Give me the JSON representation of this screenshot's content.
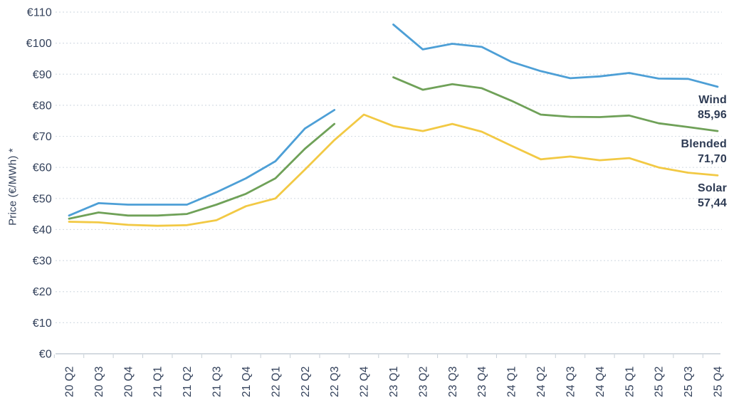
{
  "chart_data": {
    "type": "line",
    "title": "",
    "xlabel": "",
    "ylabel": "Price (€/MWh) *",
    "ylim": [
      0,
      110
    ],
    "ytick_step": 10,
    "ytick_labels": [
      "€0",
      "€10",
      "€20",
      "€30",
      "€40",
      "€50",
      "€60",
      "€70",
      "€80",
      "€90",
      "€100",
      "€110"
    ],
    "grid": "horizontal dotted gridlines, light gray",
    "legend_position": "line-end labels at right edge",
    "categories": [
      "20 Q2",
      "20 Q3",
      "20 Q4",
      "21 Q1",
      "21 Q2",
      "21 Q3",
      "21 Q4",
      "22 Q1",
      "22 Q2",
      "22 Q3",
      "22 Q4",
      "23 Q1",
      "23 Q2",
      "23 Q3",
      "23 Q4",
      "24 Q1",
      "24 Q2",
      "24 Q3",
      "24 Q4",
      "25 Q1",
      "25 Q2",
      "25 Q3",
      "25 Q4"
    ],
    "series": [
      {
        "name": "Wind",
        "end_label": "85,96",
        "color": "#4d9fd6",
        "values": [
          44.5,
          48.5,
          48.0,
          48.0,
          48.0,
          52.0,
          56.5,
          62.0,
          72.5,
          78.5,
          null,
          106.0,
          98.0,
          99.8,
          98.8,
          94.0,
          91.0,
          88.7,
          89.3,
          90.4,
          88.6,
          88.5,
          85.96
        ]
      },
      {
        "name": "Blended",
        "end_label": "71,70",
        "color": "#6fa158",
        "values": [
          43.5,
          45.5,
          44.5,
          44.5,
          45.0,
          48.0,
          51.5,
          56.5,
          66.0,
          74.0,
          null,
          89.0,
          85.0,
          86.8,
          85.5,
          81.5,
          77.0,
          76.3,
          76.2,
          76.7,
          74.2,
          73.0,
          71.7
        ]
      },
      {
        "name": "Solar",
        "end_label": "57,44",
        "color": "#f2c944",
        "values": [
          42.5,
          42.3,
          41.5,
          41.2,
          41.4,
          43.0,
          47.5,
          50.0,
          59.3,
          68.8,
          77.0,
          73.3,
          71.7,
          74.0,
          71.5,
          67.0,
          62.6,
          63.5,
          62.3,
          63.0,
          60.0,
          58.3,
          57.44
        ]
      }
    ]
  },
  "colors": {
    "background": "#ffffff",
    "text": "#32405a",
    "grid": "#d7dee5",
    "axis": "#c5ced6"
  }
}
